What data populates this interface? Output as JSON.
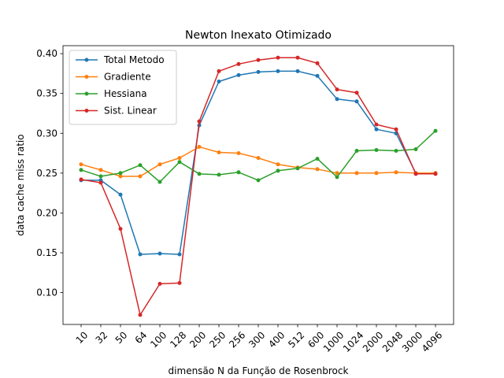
{
  "chart_data": {
    "type": "line",
    "title": "Newton Inexato Otimizado",
    "xlabel": "dimensão N da Função de Rosenbrock",
    "ylabel": "data cache miss ratio",
    "categories": [
      "10",
      "32",
      "50",
      "64",
      "100",
      "128",
      "200",
      "250",
      "256",
      "300",
      "400",
      "512",
      "600",
      "1000",
      "1024",
      "2000",
      "2048",
      "3000",
      "4096"
    ],
    "ylim": [
      0.06,
      0.41
    ],
    "yticks": [
      "0.10",
      "0.15",
      "0.20",
      "0.25",
      "0.30",
      "0.35",
      "0.40"
    ],
    "grid": false,
    "legend": "upper-left",
    "series": [
      {
        "name": "Total Metodo",
        "color": "#1f77b4",
        "values": [
          0.241,
          0.241,
          0.223,
          0.148,
          0.149,
          0.148,
          0.31,
          0.365,
          0.373,
          0.377,
          0.378,
          0.378,
          0.372,
          0.343,
          0.34,
          0.305,
          0.3,
          0.25,
          0.25
        ]
      },
      {
        "name": "Gradiente",
        "color": "#ff7f0e",
        "values": [
          0.261,
          0.254,
          0.246,
          0.246,
          0.261,
          0.269,
          0.283,
          0.276,
          0.275,
          0.269,
          0.261,
          0.257,
          0.255,
          0.25,
          0.25,
          0.25,
          0.251,
          0.25,
          0.25
        ]
      },
      {
        "name": "Hessiana",
        "color": "#2ca02c",
        "values": [
          0.254,
          0.246,
          0.25,
          0.26,
          0.239,
          0.264,
          0.249,
          0.248,
          0.251,
          0.241,
          0.253,
          0.256,
          0.268,
          0.245,
          0.278,
          0.279,
          0.278,
          0.28,
          0.303
        ]
      },
      {
        "name": "Sist. Linear",
        "color": "#d62728",
        "values": [
          0.242,
          0.238,
          0.18,
          0.072,
          0.111,
          0.112,
          0.315,
          0.378,
          0.387,
          0.392,
          0.395,
          0.395,
          0.388,
          0.355,
          0.351,
          0.311,
          0.305,
          0.249,
          0.249
        ]
      }
    ]
  }
}
